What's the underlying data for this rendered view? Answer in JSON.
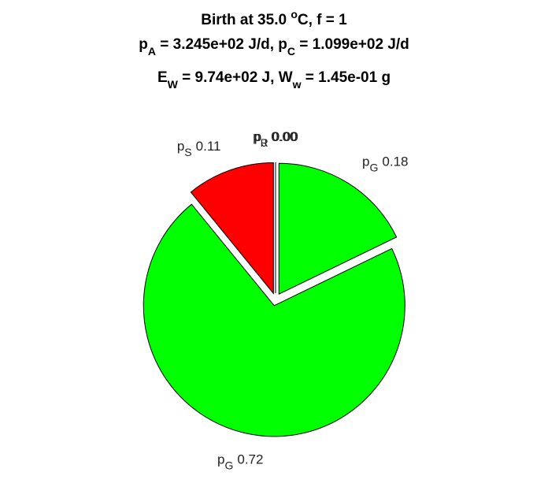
{
  "chart_data": {
    "type": "pie",
    "title": [
      [
        "Birth at 35.0 ",
        "o",
        "C, f = 1"
      ],
      [
        "p",
        "A",
        " = 3.245e+02 J/d, ",
        "p",
        "C",
        " = 1.099e+02 J/d"
      ],
      [
        "E",
        "W",
        " = 9.74e+02 J, ",
        "W",
        "w",
        " = 1.45e-01 g"
      ]
    ],
    "categories": [
      [
        "p",
        "G"
      ],
      [
        "p",
        "G"
      ],
      [
        "p",
        "S"
      ],
      [
        "p",
        "J"
      ],
      [
        "p",
        "R"
      ]
    ],
    "values": [
      0.18,
      0.72,
      0.11,
      0,
      0
    ],
    "value_labels": [
      "0.18",
      "0.72",
      "0.11",
      "0.00",
      "0.00"
    ],
    "colors": [
      "#00ff00",
      "#00ff00",
      "#ff0000",
      "#0000ff",
      "#ff00ff"
    ]
  }
}
